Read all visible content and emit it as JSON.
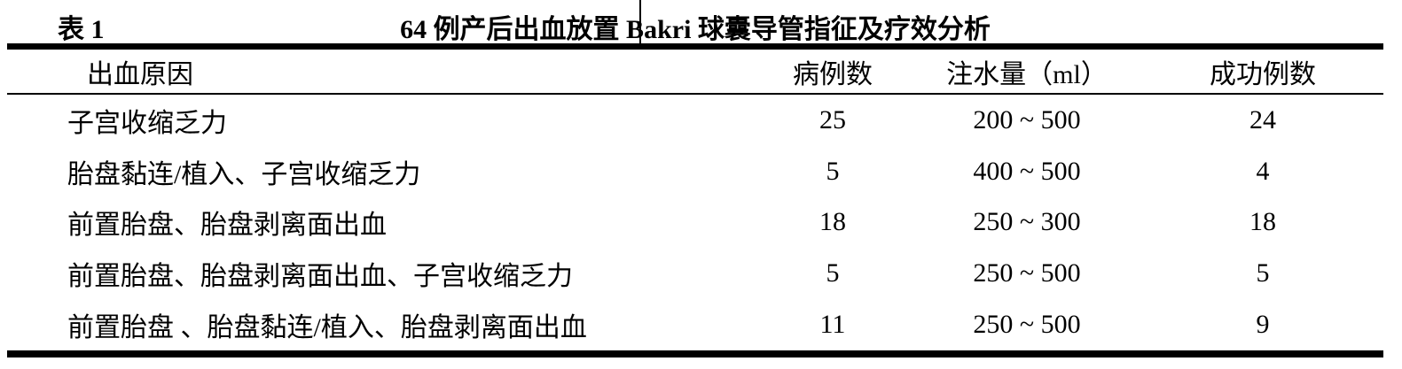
{
  "table": {
    "label": "表 1",
    "title": "64 例产后出血放置 Bakri 球囊导管指征及疗效分析",
    "columns": {
      "cause": "出血原因",
      "cases": "病例数",
      "volume": "注水量（ml）",
      "success": "成功例数"
    },
    "rows": [
      {
        "cause": "子宫收缩乏力",
        "cases": "25",
        "volume": "200 ~ 500",
        "success": "24"
      },
      {
        "cause": "胎盘黏连/植入、子宫收缩乏力",
        "cases": "5",
        "volume": "400 ~ 500",
        "success": "4"
      },
      {
        "cause": "前置胎盘、胎盘剥离面出血",
        "cases": "18",
        "volume": "250 ~ 300",
        "success": "18"
      },
      {
        "cause": "前置胎盘、胎盘剥离面出血、子宫收缩乏力",
        "cases": "5",
        "volume": "250 ~ 500",
        "success": "5"
      },
      {
        "cause": "前置胎盘 、胎盘黏连/植入、胎盘剥离面出血",
        "cases": "11",
        "volume": "250 ~ 500",
        "success": "9"
      }
    ]
  },
  "colors": {
    "background": "#ffffff",
    "text": "#000000",
    "rule": "#000000"
  }
}
